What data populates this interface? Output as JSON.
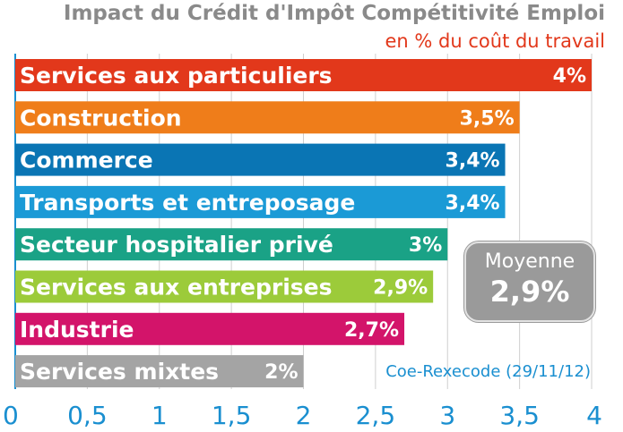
{
  "chart_data": {
    "type": "bar",
    "orientation": "horizontal",
    "title": "Impact du Crédit d'Impôt Compétitivité Emploi",
    "subtitle": "en % du coût du travail",
    "categories": [
      "Services aux particuliers",
      "Construction",
      "Commerce",
      "Transports et entreposage",
      "Secteur hospitalier privé",
      "Services aux entreprises",
      "Industrie",
      "Services mixtes"
    ],
    "values": [
      4,
      3.5,
      3.4,
      3.4,
      3,
      2.9,
      2.7,
      2
    ],
    "value_labels": [
      "4%",
      "3,5%",
      "3,4%",
      "3,4%",
      "3%",
      "2,9%",
      "2,7%",
      "2%"
    ],
    "colors": [
      "#e2381b",
      "#ef7d1a",
      "#0a75b4",
      "#1b9ad6",
      "#1aa286",
      "#9ccb3a",
      "#d3146a",
      "#a4a4a4"
    ],
    "xlim": [
      0,
      4
    ],
    "xticks": [
      0,
      0.5,
      1,
      1.5,
      2,
      2.5,
      3,
      3.5,
      4
    ],
    "xtick_labels": [
      "0",
      "0,5",
      "1",
      "1,5",
      "2",
      "2,5",
      "3",
      "3,5",
      "4"
    ],
    "tick_color": "#1a8fd0",
    "grid": true,
    "average": {
      "label": "Moyenne",
      "value": "2,9%"
    },
    "source": "Coe-Rexecode (29/11/12)"
  }
}
